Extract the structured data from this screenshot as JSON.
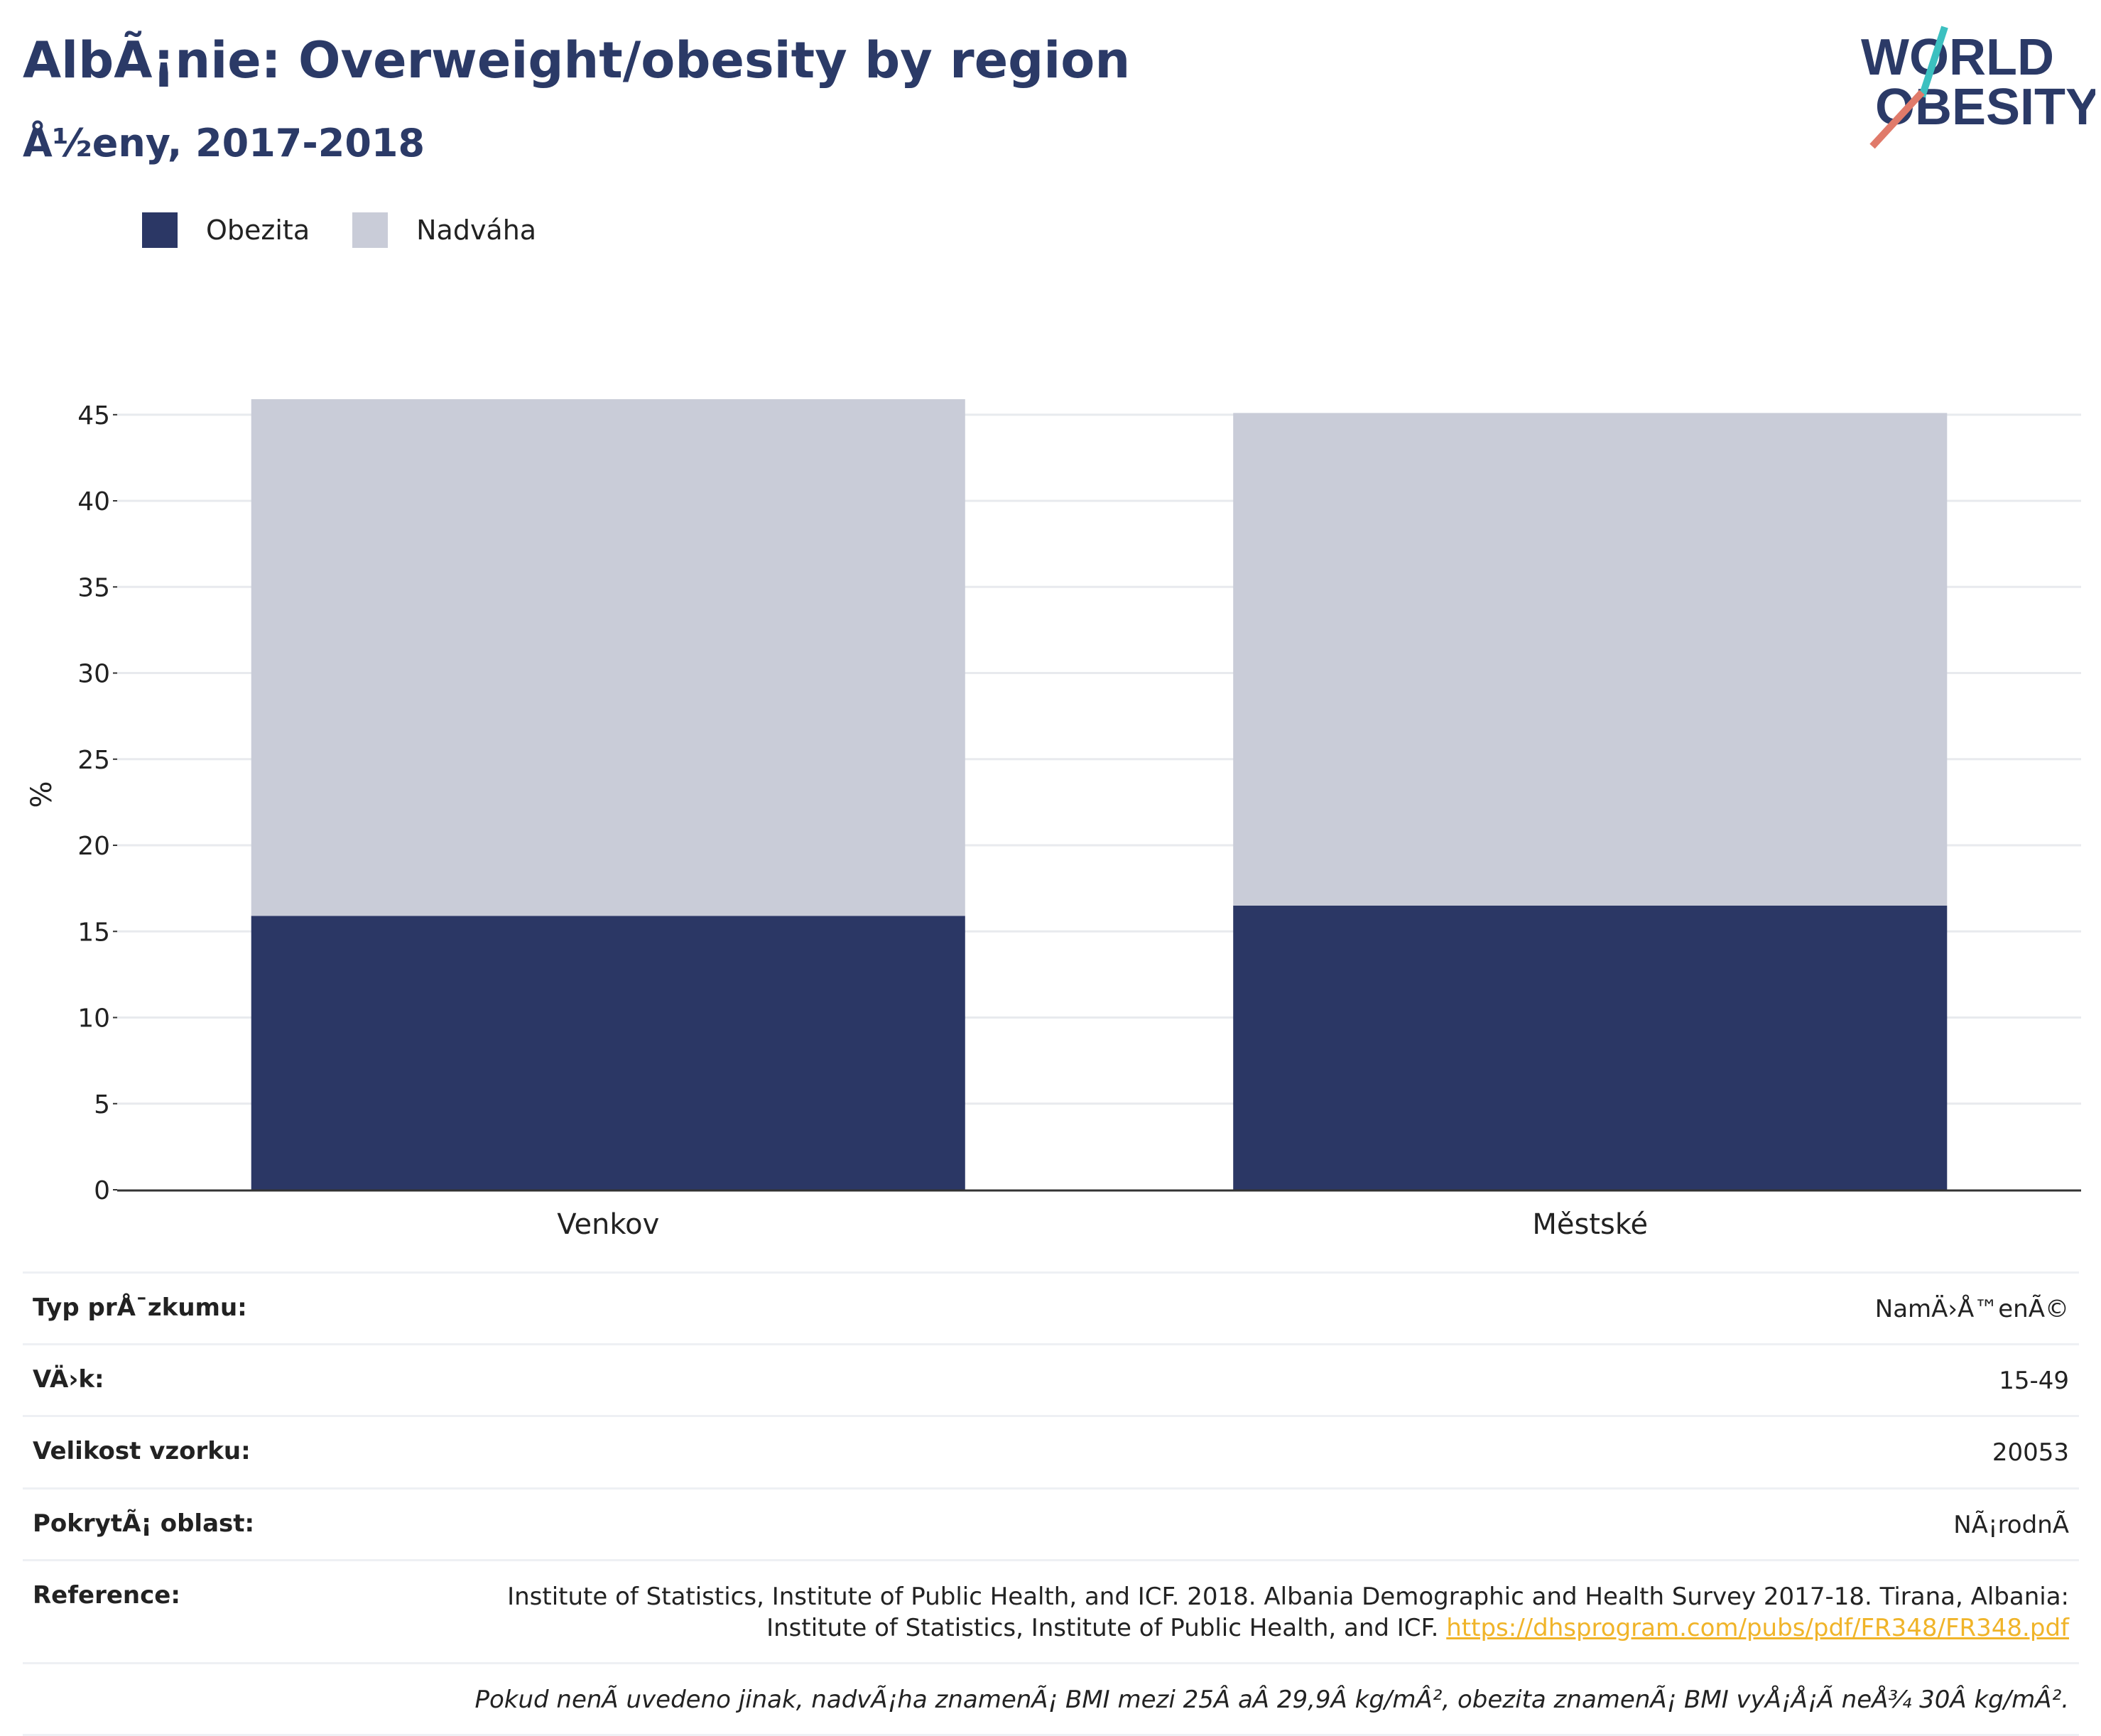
{
  "header": {
    "title": "AlbÃ¡nie: Overweight/obesity by region",
    "subtitle": "Å½eny, 2017-2018"
  },
  "logo": {
    "line1": "WORLD",
    "line2": "OBESITY",
    "colors": [
      "#2b3a67",
      "#e07a6a",
      "#3cc0c0"
    ]
  },
  "legend": [
    {
      "label": "Obezita",
      "color": "#2b3765"
    },
    {
      "label": "Nadváha",
      "color": "#c9ccd8"
    }
  ],
  "chart_data": {
    "type": "bar",
    "stacked": true,
    "categories": [
      "Venkov",
      "Městské"
    ],
    "series": [
      {
        "name": "Obezita",
        "values": [
          15.9,
          16.5
        ],
        "color": "#2b3765"
      },
      {
        "name": "Nadváha",
        "values": [
          30.0,
          28.6
        ],
        "color": "#c9ccd8"
      }
    ],
    "ylabel": "%",
    "ylim": [
      0,
      45.9
    ],
    "yticks": [
      0,
      5,
      10,
      15,
      20,
      25,
      30,
      35,
      40,
      45
    ],
    "grid": true
  },
  "info": {
    "rows": [
      {
        "key": "Typ prÅ¯zkumu:",
        "value": "NamÄ›Å™enÃ©"
      },
      {
        "key": "VÄ›k:",
        "value": "15-49"
      },
      {
        "key": "Velikost vzorku:",
        "value": "20053"
      },
      {
        "key": "PokrytÃ¡ oblast:",
        "value": "NÃ¡rodnÃ"
      }
    ],
    "reference_key": "Reference:",
    "reference_line1": "Institute of Statistics, Institute of Public Health, and ICF. 2018. Albania Demographic and Health Survey 2017-18. Tirana, Albania:",
    "reference_line2": "Institute of Statistics, Institute of Public Health, and ICF.",
    "reference_url": "https://dhsprogram.com/pubs/pdf/FR348/FR348.pdf",
    "note": "Pokud nenÃ uvedeno jinak, nadvÃ¡ha znamenÃ¡ BMI mezi 25Â aÂ 29,9Â kg/mÂ², obezita znamenÃ¡ BMI vyÅ¡Å¡Ã neÅ¾ 30Â kg/mÂ²."
  }
}
